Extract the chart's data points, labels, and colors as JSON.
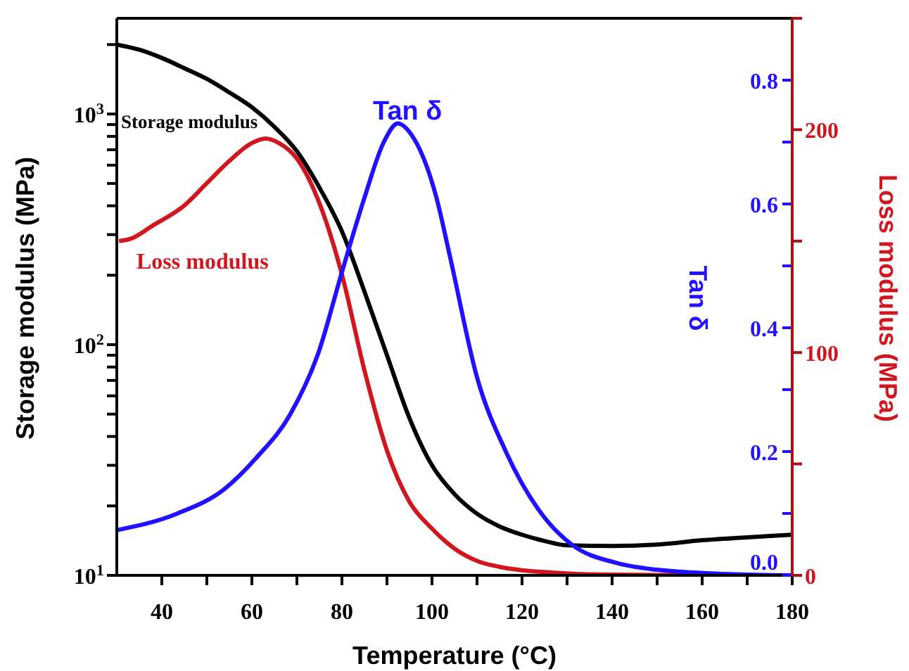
{
  "chart_data": {
    "type": "line",
    "xlabel": "Temperature (°C)",
    "ylabel": "Storage modulus (MPa)",
    "y2label": "Tan δ",
    "y3label": "Loss modulus (MPa)",
    "xlim": [
      30,
      180
    ],
    "xticks": [
      40,
      60,
      80,
      100,
      120,
      140,
      160,
      180,
      {
        "value": 50,
        "label": null
      },
      {
        "value": 70,
        "label": null
      },
      {
        "value": 90,
        "label": null
      },
      {
        "value": 110,
        "label": null
      },
      {
        "value": 130,
        "label": null
      },
      {
        "value": 150,
        "label": null
      },
      {
        "value": 170,
        "label": null
      }
    ],
    "log": "y",
    "ylim": [
      10,
      2600
    ],
    "yticks": [
      {
        "value": 10,
        "label": "10$^{1}$"
      },
      {
        "value": 100,
        "label": "10$^{2}$"
      },
      {
        "value": 1000,
        "label": "10$^{3}$"
      },
      {
        "value": 20,
        "label": null
      },
      {
        "value": 30,
        "label": null
      },
      {
        "value": 40,
        "label": null
      },
      {
        "value": 50,
        "label": null
      },
      {
        "value": 60,
        "label": null
      },
      {
        "value": 70,
        "label": null
      },
      {
        "value": 80,
        "label": null
      },
      {
        "value": 90,
        "label": null
      },
      {
        "value": 200,
        "label": null
      },
      {
        "value": 300,
        "label": null
      },
      {
        "value": 400,
        "label": null
      },
      {
        "value": 500,
        "label": null
      },
      {
        "value": 600,
        "label": null
      },
      {
        "value": 700,
        "label": null
      },
      {
        "value": 800,
        "label": null
      },
      {
        "value": 900,
        "label": null
      },
      {
        "value": 2000,
        "label": null
      }
    ],
    "y2lim": [
      0,
      0.9
    ],
    "y2ticks": [
      {
        "value": 0,
        "label": "0.0"
      },
      0.2,
      0.4,
      0.6,
      0.8,
      {
        "value": 0.1,
        "label": null
      },
      {
        "value": 0.3,
        "label": null
      },
      {
        "value": 0.5,
        "label": null
      },
      {
        "value": 0.7,
        "label": null
      }
    ],
    "y3lim": [
      0,
      250
    ],
    "y3ticks": [
      0,
      100,
      200,
      {
        "value": 50,
        "label": null
      },
      {
        "value": 150,
        "label": null
      },
      {
        "value": 250,
        "label": null
      }
    ],
    "marker": "none",
    "series": [
      {
        "name": "Storage modulus",
        "color": "#000000",
        "x": [
          30,
          35,
          40,
          45,
          50,
          55,
          60,
          65,
          70,
          75,
          80,
          85,
          90,
          95,
          100,
          105,
          110,
          115,
          120,
          125,
          130,
          140,
          150,
          160,
          170,
          180
        ],
        "values": [
          2000,
          1900,
          1750,
          1580,
          1420,
          1240,
          1070,
          880,
          690,
          480,
          310,
          170,
          90,
          48,
          30,
          22.5,
          18.5,
          16.3,
          15,
          14.1,
          13.5,
          13.4,
          13.6,
          14.2,
          14.6,
          15
        ]
      },
      {
        "name": "Loss modulus",
        "color": "#d0161e",
        "axis": "y3",
        "x": [
          30.5,
          33,
          38,
          45,
          50,
          55,
          60,
          63,
          66,
          70,
          75,
          80,
          85,
          90,
          95,
          100,
          105,
          110,
          115,
          120,
          130,
          140,
          160,
          180
        ],
        "values": [
          150,
          151,
          157,
          166,
          176,
          186,
          194,
          196,
          194,
          187,
          167,
          135,
          92,
          56,
          33,
          21,
          12,
          6.5,
          3.8,
          2.3,
          0.9,
          0.3,
          0,
          0
        ]
      },
      {
        "name": "Tan δ",
        "color": "#2211ff",
        "axis": "y2",
        "x": [
          30,
          43.5,
          54,
          61,
          68.5,
          74.8,
          80,
          85,
          89.3,
          92.4,
          95.6,
          101,
          104,
          110,
          116.4,
          124.7,
          131,
          141,
          150,
          166,
          180
        ],
        "values": [
          0.073,
          0.1,
          0.14,
          0.19,
          0.26,
          0.36,
          0.49,
          0.61,
          0.7,
          0.73,
          0.71,
          0.61,
          0.515,
          0.32,
          0.2,
          0.096,
          0.05,
          0.02,
          0.009,
          0.002,
          0
        ]
      }
    ]
  }
}
